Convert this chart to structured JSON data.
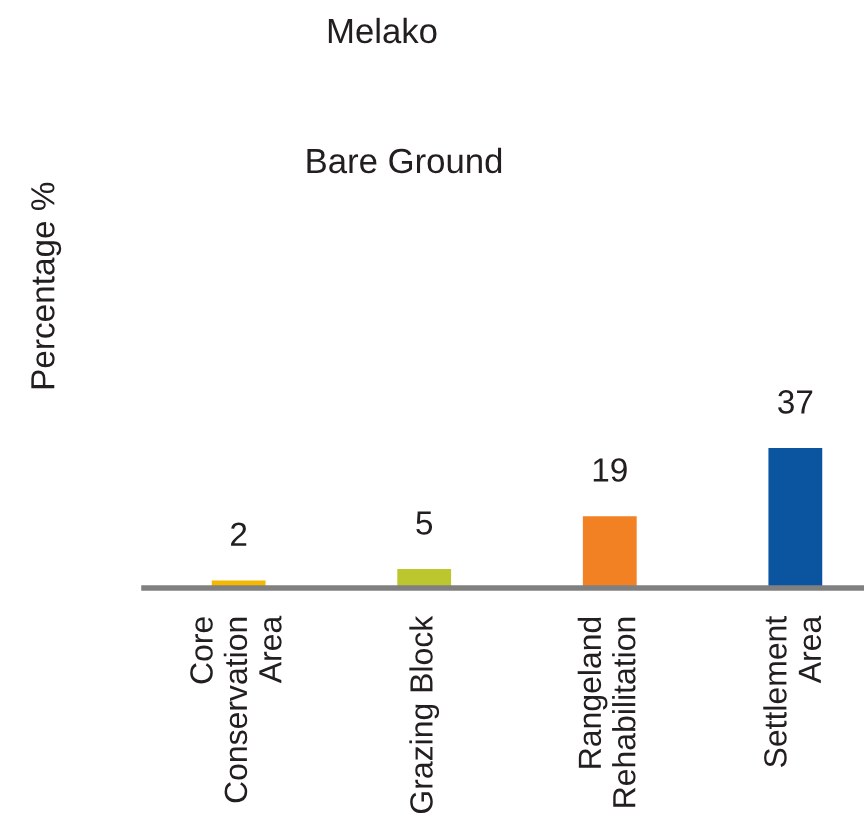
{
  "chart_data": {
    "type": "bar",
    "title": "Melako",
    "subtitle": "Bare Ground",
    "ylabel": "Percentage %",
    "categories": [
      "Core\nConservation\nArea",
      "Grazing Block",
      "Rangeland\nRehabilitation",
      "Settlement\nArea"
    ],
    "values": [
      2,
      5,
      19,
      37
    ],
    "colors": [
      "#f5b800",
      "#bcc72f",
      "#f28124",
      "#0b54a0"
    ],
    "data_labels": true
  }
}
